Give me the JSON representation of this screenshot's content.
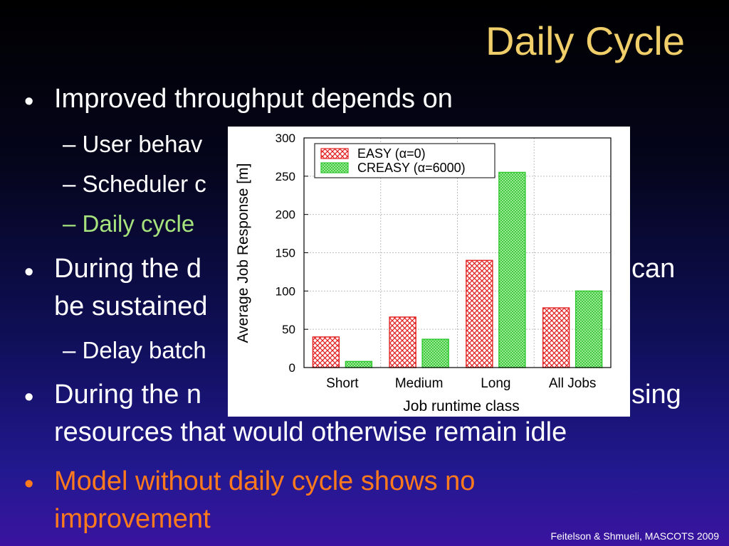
{
  "slide": {
    "title": "Daily Cycle",
    "lines": [
      {
        "level": 1,
        "text": "Improved throughput depends on",
        "color": "#ffffff"
      },
      {
        "level": 2,
        "text": "– User behav",
        "color": "#ffffff"
      },
      {
        "level": 2,
        "text": "– Scheduler c",
        "color": "#ffffff"
      },
      {
        "level": 2,
        "text": "– Daily cycle",
        "color": "#a6e37d"
      },
      {
        "level": 1,
        "text": "During the d",
        "color": "#ffffff"
      },
      {
        "level": 1,
        "text": "be sustained",
        "color": "#ffffff"
      },
      {
        "level": 2,
        "text": "– Delay batch",
        "color": "#ffffff"
      },
      {
        "level": 1,
        "text": "During the n",
        "color": "#ffffff"
      },
      {
        "level": 1,
        "text": "resources that would otherwise remain idle",
        "color": "#ffffff"
      },
      {
        "level": 1,
        "text": "Model without daily cycle shows no",
        "color": "#ff7a1c"
      },
      {
        "level": 1,
        "text": "improvement",
        "color": "#ff7a1c"
      }
    ],
    "right_fragments": [
      ")",
      "can",
      "sing"
    ],
    "footer": "Feitelson & Shmueli, MASCOTS 2009"
  },
  "chart_data": {
    "type": "bar",
    "categories": [
      "Short",
      "Medium",
      "Long",
      "All Jobs"
    ],
    "series": [
      {
        "name": "EASY (α=0)",
        "values": [
          40,
          66,
          140,
          78
        ],
        "color": "#e32222"
      },
      {
        "name": "CREASY (α=6000)",
        "values": [
          8,
          37,
          255,
          100
        ],
        "color": "#2ec72e"
      }
    ],
    "xlabel": "Job runtime class",
    "ylabel": "Average Job Response [m]",
    "ylim": [
      0,
      300
    ],
    "yticks": [
      0,
      50,
      100,
      150,
      200,
      250,
      300
    ],
    "legend": "top-left",
    "grid": true
  }
}
